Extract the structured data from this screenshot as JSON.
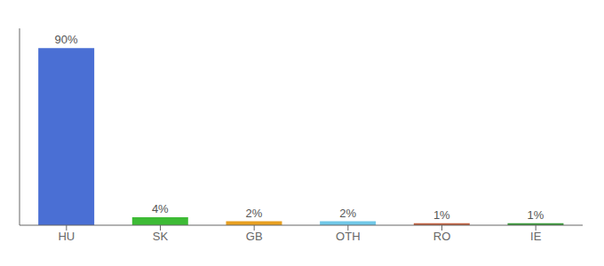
{
  "chart_data": {
    "type": "bar",
    "categories": [
      "HU",
      "SK",
      "GB",
      "OTH",
      "RO",
      "IE"
    ],
    "values": [
      90,
      4,
      2,
      2,
      1,
      1
    ],
    "value_labels": [
      "90%",
      "4%",
      "2%",
      "2%",
      "1%",
      "1%"
    ],
    "data_labels": true,
    "colors": [
      "#4a6fd4",
      "#3dbb35",
      "#e8a020",
      "#70c8e8",
      "#c06040",
      "#3a9a3a"
    ],
    "ylim": [
      0,
      100
    ],
    "tick_labels": "x"
  }
}
